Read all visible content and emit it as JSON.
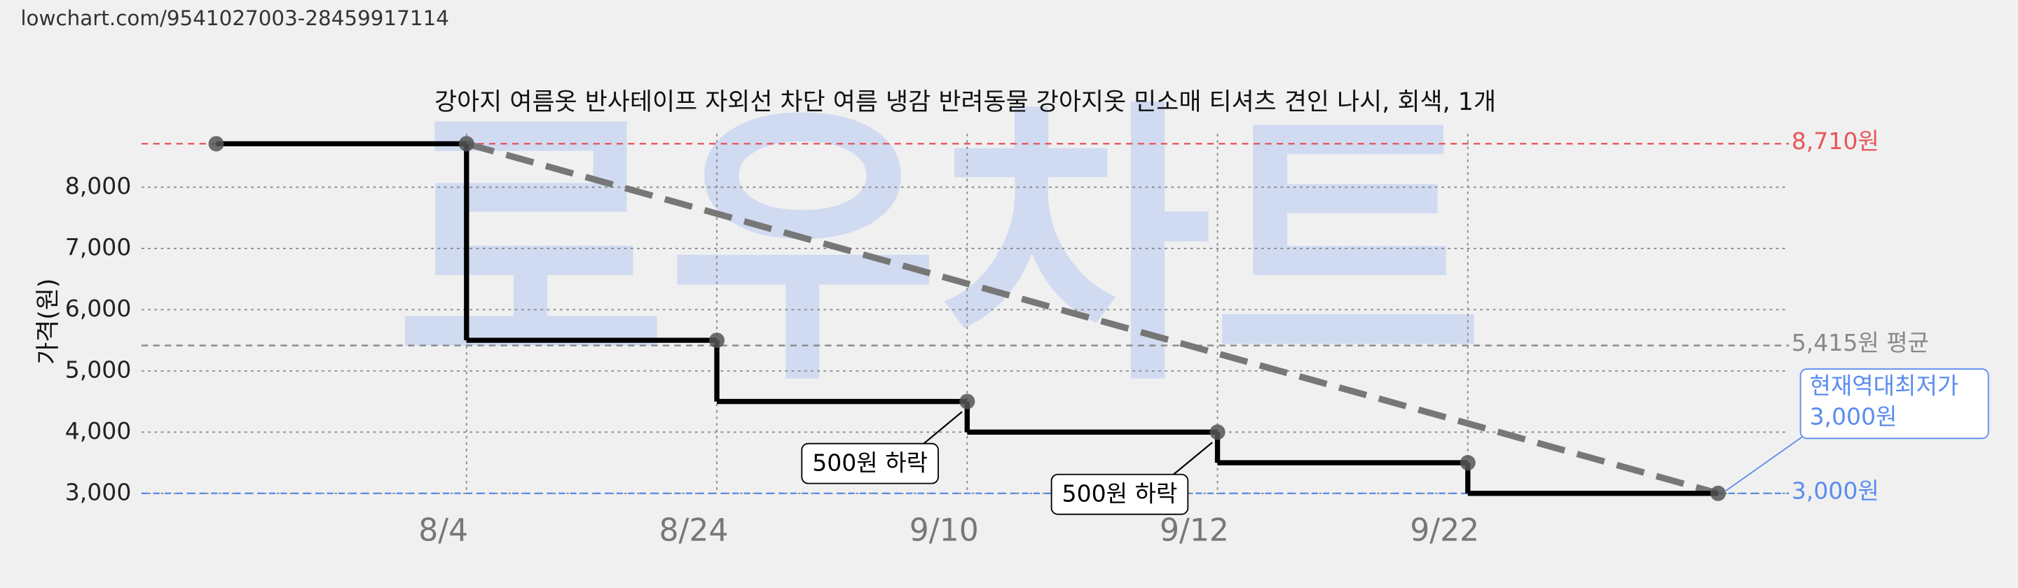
{
  "url": "lowchart.com/9541027003-28459917114",
  "chart_data": {
    "type": "step-line",
    "title": "강아지 여름옷 반사테이프 자외선 차단 여름 냉감 반려동물 강아지옷 민소매 티셔츠 견인 나시, 회색, 1개",
    "y_label": "가격(원)",
    "watermark": "로우차트",
    "categories": [
      null,
      "8/4",
      "8/24",
      "9/10",
      "9/12",
      "9/22",
      null
    ],
    "values": [
      8710,
      8710,
      5500,
      4500,
      4000,
      3500,
      3000
    ],
    "color": "#000000",
    "trend_color": "#777777",
    "ylim": [
      2700,
      9000
    ],
    "yticks": [
      {
        "value": 3000,
        "label": "3,000"
      },
      {
        "value": 4000,
        "label": "4,000"
      },
      {
        "value": 5000,
        "label": "5,000"
      },
      {
        "value": 6000,
        "label": "6,000"
      },
      {
        "value": 7000,
        "label": "7,000"
      },
      {
        "value": 8000,
        "label": "8,000"
      }
    ],
    "grid": true,
    "reference_lines": [
      {
        "value": 8710,
        "label": "8,710원",
        "color": "#e8555b"
      },
      {
        "value": 5415,
        "label": "5,415원 평균",
        "color": "#888888"
      },
      {
        "value": 3000,
        "label": "3,000원",
        "color": "#5b8def"
      }
    ],
    "annotations": [
      "500원 하락",
      "500원 하락"
    ],
    "callout": [
      "현재역대최저가",
      "3,000원"
    ]
  }
}
